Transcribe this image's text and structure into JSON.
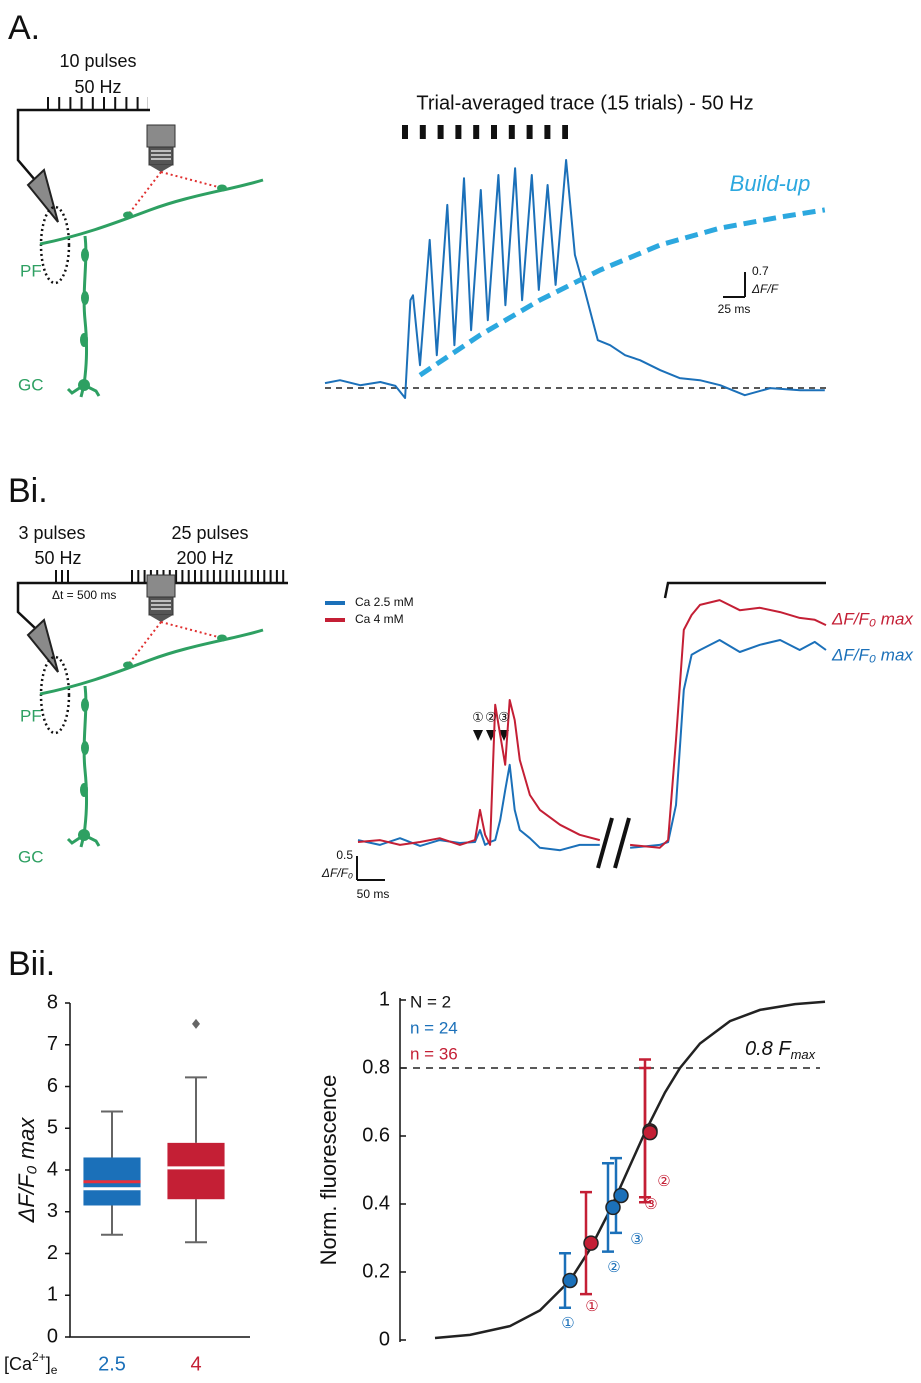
{
  "panel_a": {
    "label": "A.",
    "stim_text": [
      "10 pulses",
      "50 Hz"
    ],
    "cell_labels": [
      "PF",
      "GC"
    ],
    "chart_data": {
      "type": "line",
      "title": "Trial-averaged trace (15 trials) - 50 Hz",
      "x": [
        0,
        17,
        40,
        63,
        80,
        91,
        97,
        100,
        108,
        119,
        127,
        139,
        147,
        158,
        166,
        177,
        185,
        197,
        205,
        216,
        224,
        235,
        243,
        253,
        262,
        274,
        284,
        295,
        310,
        324,
        341,
        358,
        381,
        403,
        426,
        449,
        477,
        506,
        540,
        568
      ],
      "xlim": [
        0,
        570
      ],
      "ylim": [
        -0.5,
        7
      ],
      "series": [
        {
          "color": "#1b70b9",
          "values": [
            0.14,
            0.22,
            0.08,
            0.17,
            0.06,
            -0.28,
            2.46,
            2.6,
            0.64,
            4.15,
            0.92,
            5.13,
            1.2,
            5.88,
            1.62,
            5.55,
            1.9,
            5.97,
            2.32,
            6.16,
            2.46,
            5.97,
            2.75,
            5.69,
            2.89,
            6.39,
            3.73,
            2.75,
            1.34,
            1.2,
            0.92,
            0.78,
            0.5,
            0.28,
            0.22,
            0.08,
            -0.2,
            0,
            -0.06,
            -0.06
          ]
        }
      ],
      "buildup": {
        "name": "Build-up",
        "color": "#2ca8df",
        "x": [
          108,
          176,
          244,
          313,
          381,
          449,
          517,
          568
        ],
        "values": [
          0.36,
          1.48,
          2.46,
          3.31,
          4.01,
          4.48,
          4.79,
          4.99
        ]
      },
      "reference_line": 0,
      "scale_bar": {
        "x": {
          "value": 25,
          "label": "25 ms"
        },
        "y": 0.7,
        "y_unit": "ΔF/F"
      }
    }
  },
  "panel_bi": {
    "label": "Bi.",
    "stim_text": [
      "3 pulses",
      "50 Hz",
      "25 pulses",
      "200 Hz",
      "Δt = 500 ms"
    ],
    "cell_labels": [
      "PF",
      "GC"
    ],
    "chart_data": {
      "type": "line",
      "x": [
        0,
        39,
        75,
        111,
        146,
        182,
        209,
        218,
        227,
        236,
        245,
        254,
        263,
        271,
        280,
        289,
        307,
        325,
        361,
        396,
        432,
        454,
        486,
        539,
        554,
        568,
        582,
        596,
        611,
        646,
        682,
        718,
        754,
        789,
        816,
        836
      ],
      "xlim": [
        0,
        836
      ],
      "ylim": [
        -1,
        5.5
      ],
      "series": [
        {
          "name": "Ca 2.5 mM",
          "color": "#1b70b9",
          "end_label": "ΔF/F₀ max",
          "values": [
            0.06,
            -0.04,
            0.1,
            -0.06,
            0.06,
            0,
            0.02,
            0.27,
            -0.04,
            0.02,
            0.06,
            0.48,
            1.1,
            1.63,
            0.69,
            0.27,
            0.1,
            -0.1,
            -0.15,
            -0.04,
            -0.04,
            null,
            -0.1,
            -0.04,
            0.02,
            0.79,
            3.19,
            3.92,
            4.02,
            4.23,
            3.98,
            4.13,
            4.23,
            4.02,
            4.19,
            4.02
          ]
        },
        {
          "name": "Ca 4 mM",
          "color": "#c41f35",
          "end_label": "ΔF/F₀ max",
          "values": [
            0.02,
            0.06,
            -0.04,
            0.02,
            0.1,
            -0.04,
            0.06,
            0.69,
            0.17,
            -0.04,
            2.88,
            2.25,
            1.63,
            2.98,
            2.56,
            1.73,
            1,
            0.69,
            0.38,
            0.17,
            0.06,
            null,
            -0.04,
            -0.1,
            0.06,
            2.15,
            4.44,
            4.75,
            4.96,
            5.06,
            4.85,
            4.9,
            4.81,
            4.69,
            4.65,
            4.54
          ]
        }
      ],
      "pulse_labels": [
        "①",
        "②",
        "③"
      ],
      "scale_bar": {
        "x": {
          "value": 50,
          "label": "50 ms"
        },
        "y": 0.5,
        "y_unit": "ΔF/F₀"
      }
    }
  },
  "panel_bii": {
    "label": "Bii.",
    "charts": [
      {
        "type": "box",
        "ylabel": "ΔF/F₀ max",
        "xlabel_parts": [
          "[Ca",
          "2+",
          "]",
          "e"
        ],
        "categories": [
          "2.5",
          "4"
        ],
        "colors": [
          "#1b70b9",
          "#c41f35"
        ],
        "mean_color": "#e8303c",
        "boxes": [
          {
            "whislo": 2.45,
            "q1": 3.15,
            "med": 3.55,
            "mean": 3.72,
            "q3": 4.3,
            "whishi": 5.4
          },
          {
            "whislo": 2.27,
            "q1": 3.3,
            "med": 4.05,
            "q3": 4.65,
            "whishi": 6.22,
            "fliers": [
              7.5
            ]
          }
        ],
        "ylim": [
          0,
          8
        ],
        "yticks": [
          0,
          1,
          2,
          3,
          4,
          5,
          6,
          7,
          8
        ]
      },
      {
        "type": "scatter",
        "ylabel": "Norm. fluorescence",
        "xlim": [
          0,
          400
        ],
        "ylim": [
          0,
          1
        ],
        "yticks": [
          0,
          0.2,
          0.4,
          0.6,
          0.8,
          1
        ],
        "annotations": [
          "N = 2"
        ],
        "reference_line": 0.8,
        "reference_label": {
          "text": "0.8 F",
          "sub": "max"
        },
        "fit": {
          "color": "#222222",
          "x": [
            5,
            40,
            80,
            110,
            140,
            160,
            180,
            198,
            215,
            235,
            250,
            270,
            300,
            330,
            365,
            395
          ],
          "values": [
            0.006,
            0.015,
            0.041,
            0.087,
            0.175,
            0.267,
            0.382,
            0.5,
            0.611,
            0.728,
            0.8,
            0.872,
            0.938,
            0.971,
            0.988,
            0.995
          ]
        },
        "series": [
          {
            "name": "n = 24",
            "color": "#1b70b9",
            "x": [
              140,
              183,
              191
            ],
            "values": [
              0.175,
              0.39,
              0.425
            ],
            "errors": [
              0.08,
              0.13,
              0.11
            ],
            "point_labels": [
              "①",
              "②",
              "③"
            ]
          },
          {
            "name": "n = 36",
            "color": "#c41f35",
            "x": [
              161,
              220,
              220
            ],
            "values": [
              0.285,
              0.615,
              0.61
            ],
            "errors": [
              0.15,
              0.21,
              0.19
            ],
            "point_labels": [
              "①",
              "②",
              "③"
            ]
          }
        ]
      }
    ]
  }
}
